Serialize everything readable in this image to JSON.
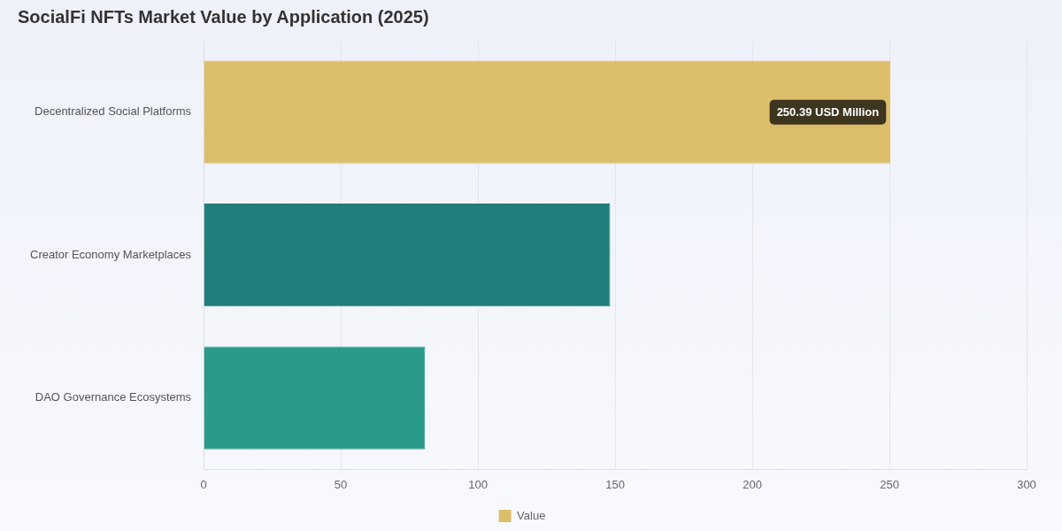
{
  "chart_data": {
    "type": "bar",
    "orientation": "horizontal",
    "title": "SocialFi NFTs Market Value by Application (2025)",
    "categories": [
      "Decentralized Social Platforms",
      "Creator Economy Marketplaces",
      "DAO Governance Ecosystems"
    ],
    "colors": [
      "#dcbd6a",
      "#217e7a",
      "#2a9a8a"
    ],
    "series": [
      {
        "name": "Value",
        "values": [
          250.39,
          148.2,
          80.7
        ]
      }
    ],
    "xlim": [
      0,
      300
    ],
    "xticks": [
      0,
      50,
      100,
      150,
      200,
      250,
      300
    ],
    "grid": "x",
    "legend": "bottom",
    "annotations": [
      {
        "text": "250.39 USD Million",
        "x": 250.39,
        "y": "Decentralized Social Platforms"
      }
    ]
  }
}
